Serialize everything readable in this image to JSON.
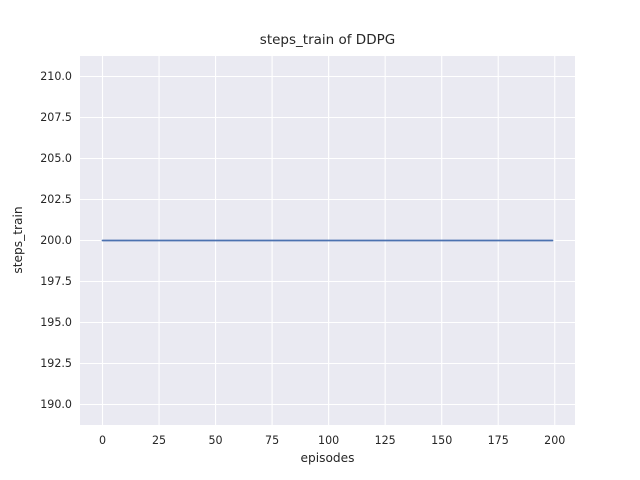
{
  "chart_data": {
    "type": "line",
    "title": "steps_train of DDPG",
    "xlabel": "episodes",
    "ylabel": "steps_train",
    "xlim": [
      -9.95,
      208.95
    ],
    "ylim": [
      188.75,
      211.25
    ],
    "x_tick_values": [
      0,
      25,
      50,
      75,
      100,
      125,
      150,
      175,
      200
    ],
    "x_tick_labels": [
      "0",
      "25",
      "50",
      "75",
      "100",
      "125",
      "150",
      "175",
      "200"
    ],
    "y_tick_values": [
      190.0,
      192.5,
      195.0,
      197.5,
      200.0,
      202.5,
      205.0,
      207.5,
      210.0
    ],
    "y_tick_labels": [
      "190.0",
      "192.5",
      "195.0",
      "197.5",
      "200.0",
      "202.5",
      "205.0",
      "207.5",
      "210.0"
    ],
    "grid": true,
    "legend": "none",
    "colors": {
      "figure_background": "#ffffff",
      "axes_background": "#eaeaf2",
      "gridline": "#ffffff",
      "text": "#262626"
    },
    "series": [
      {
        "name": "steps_train",
        "color": "#4c72b0",
        "x": [
          0,
          199
        ],
        "y": [
          200.0,
          200.0
        ],
        "note": "constant value 200 for all episodes 0-199"
      }
    ]
  }
}
